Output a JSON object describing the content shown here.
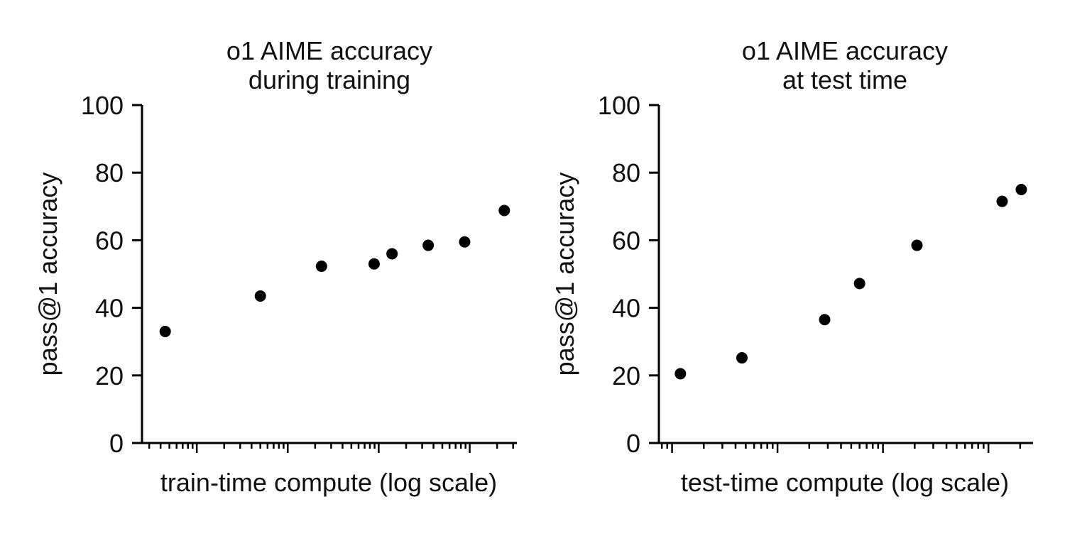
{
  "chart_data": [
    {
      "type": "scatter",
      "title": [
        "o1 AIME accuracy",
        "during training"
      ],
      "xlabel": "train-time compute (log scale)",
      "ylabel": "pass@1 accuracy",
      "xscale": "log",
      "ylim": [
        0,
        100
      ],
      "yticks": [
        "0",
        "20",
        "40",
        "60",
        "80",
        "100"
      ],
      "grid": false,
      "color": "#000000",
      "x": [
        0.045,
        0.5,
        2.35,
        8.9,
        14.0,
        35.0,
        88.0,
        240.0
      ],
      "y": [
        33,
        43.5,
        52.3,
        53,
        56,
        58.5,
        59.5,
        68.8
      ]
    },
    {
      "type": "scatter",
      "title": [
        "o1 AIME accuracy",
        "at test time"
      ],
      "xlabel": "test-time compute (log scale)",
      "ylabel": "pass@1 accuracy",
      "xscale": "log",
      "ylim": [
        0,
        100
      ],
      "yticks": [
        "0",
        "20",
        "40",
        "60",
        "80",
        "100"
      ],
      "grid": false,
      "color": "#000000",
      "x": [
        1.2,
        4.6,
        28.0,
        60.0,
        210.0,
        1350.0,
        2050.0
      ],
      "y": [
        20.5,
        25.2,
        36.5,
        47.2,
        58.5,
        71.5,
        75
      ]
    }
  ]
}
